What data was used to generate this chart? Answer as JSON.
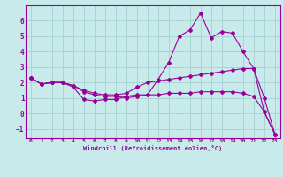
{
  "xlabel": "Windchill (Refroidissement éolien,°C)",
  "ylabel": "",
  "bg_color": "#c8eaea",
  "grid_color": "#aad4d4",
  "line_color": "#990099",
  "xlim": [
    -0.5,
    23.5
  ],
  "ylim": [
    -1.6,
    7.0
  ],
  "xticks": [
    0,
    1,
    2,
    3,
    4,
    5,
    6,
    7,
    8,
    9,
    10,
    11,
    12,
    13,
    14,
    15,
    16,
    17,
    18,
    19,
    20,
    21,
    22,
    23
  ],
  "yticks": [
    -1,
    0,
    1,
    2,
    3,
    4,
    5,
    6
  ],
  "line1_x": [
    0,
    1,
    2,
    3,
    4,
    5,
    6,
    7,
    8,
    9,
    10,
    11,
    12,
    13,
    14,
    15,
    16,
    17,
    18,
    19,
    20,
    21,
    22,
    23
  ],
  "line1_y": [
    2.3,
    1.9,
    2.0,
    2.0,
    1.7,
    0.9,
    0.8,
    0.9,
    0.9,
    1.1,
    1.2,
    1.2,
    2.2,
    3.3,
    5.0,
    5.4,
    6.5,
    4.9,
    5.3,
    5.2,
    4.0,
    2.9,
    0.1,
    -1.35
  ],
  "line2_x": [
    0,
    1,
    2,
    3,
    4,
    5,
    6,
    7,
    8,
    9,
    10,
    11,
    12,
    13,
    14,
    15,
    16,
    17,
    18,
    19,
    20,
    21,
    22,
    23
  ],
  "line2_y": [
    2.3,
    1.9,
    2.0,
    2.0,
    1.8,
    1.5,
    1.3,
    1.2,
    1.2,
    1.3,
    1.7,
    2.0,
    2.1,
    2.2,
    2.3,
    2.4,
    2.5,
    2.6,
    2.7,
    2.8,
    2.9,
    2.9,
    1.0,
    -1.35
  ],
  "line3_x": [
    0,
    1,
    2,
    3,
    4,
    5,
    6,
    7,
    8,
    9,
    10,
    11,
    12,
    13,
    14,
    15,
    16,
    17,
    18,
    19,
    20,
    21,
    22,
    23
  ],
  "line3_y": [
    2.3,
    1.9,
    2.0,
    2.0,
    1.8,
    1.4,
    1.2,
    1.1,
    1.1,
    1.0,
    1.1,
    1.2,
    1.2,
    1.3,
    1.3,
    1.3,
    1.4,
    1.4,
    1.4,
    1.4,
    1.3,
    1.1,
    0.1,
    -1.35
  ]
}
